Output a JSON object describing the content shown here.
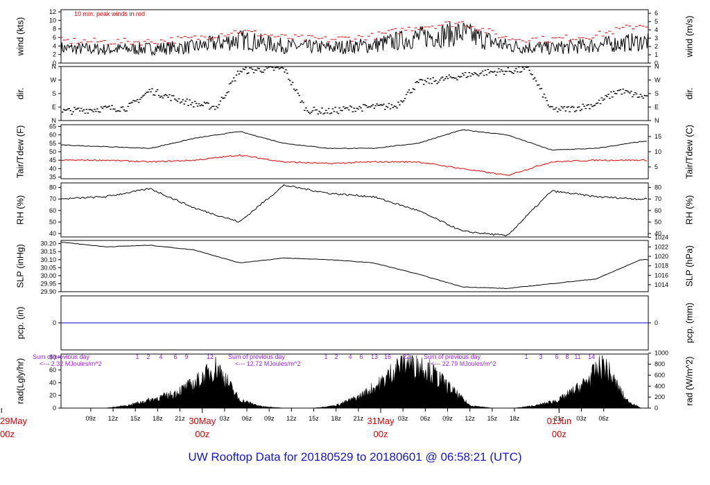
{
  "title": "UW Rooftop Data for 20180529  to  20180601 @ 06:58:21  (UTC)",
  "x_axis": {
    "hour_ticks": [
      "09z",
      "12z",
      "15z",
      "18z",
      "21z",
      "03z",
      "06z",
      "09z",
      "12z",
      "15z",
      "18z",
      "21z",
      "03z",
      "06z",
      "09z",
      "12z",
      "15z",
      "18z",
      "21z",
      "03z",
      "06z"
    ],
    "days": [
      {
        "date": "29May",
        "hour": "00z"
      },
      {
        "date": "30May",
        "hour": "00z"
      },
      {
        "date": "31May",
        "hour": "00z"
      },
      {
        "date": "01Jun",
        "hour": "00z"
      }
    ]
  },
  "panels": {
    "wind": {
      "ylabel_left": "wind (kts)",
      "ylabel_right": "wind (m/s)",
      "left_ticks": [
        "0",
        "2",
        "4",
        "6",
        "8",
        "10",
        "12"
      ],
      "right_ticks": [
        "0",
        "1",
        "2",
        "3",
        "4",
        "5",
        "6"
      ],
      "note": "10 min. peak winds in red"
    },
    "dir": {
      "ylabel_left": "dir.",
      "ylabel_right": "dir.",
      "ticks": [
        "N",
        "E",
        "S",
        "W",
        "N"
      ]
    },
    "temp": {
      "ylabel_left": "Tair/Tdew (F)",
      "ylabel_right": "Tair/Tdew (C)",
      "left_ticks": [
        "35",
        "40",
        "45",
        "50",
        "55",
        "60",
        "65"
      ],
      "right_ticks": [
        "5",
        "10",
        "15"
      ]
    },
    "rh": {
      "ylabel_left": "RH (%)",
      "ylabel_right": "RH (%)",
      "ticks": [
        "40",
        "50",
        "60",
        "70",
        "80"
      ]
    },
    "slp": {
      "ylabel_left": "SLP (inHg)",
      "ylabel_right": "SLP (hPa)",
      "left_ticks": [
        "29.90",
        "29.95",
        "30.00",
        "30.05",
        "30.10",
        "30.15",
        "30.20"
      ],
      "right_ticks": [
        "1014",
        "1016",
        "1018",
        "1020",
        "1022",
        "1024"
      ]
    },
    "pcp": {
      "ylabel_left": "pcp. (in)",
      "ylabel_right": "pcp. (mm)",
      "left_ticks": [
        "0"
      ],
      "right_ticks": [
        "0"
      ]
    },
    "rad": {
      "ylabel_left": "rad(Lgly/hr)",
      "ylabel_right": "rad (W/m^2)",
      "left_ticks": [
        "0",
        "20",
        "40",
        "60",
        "80"
      ],
      "right_ticks": [
        "0",
        "200",
        "400",
        "600",
        "800",
        "1000"
      ],
      "day_sums": [
        {
          "line1": "Sum of previous day",
          "line2": "<--- 2.32 MJoules/m^2"
        },
        {
          "line1": "Sum of previous day",
          "line2": "<--- 12.72 MJoules/m^2"
        },
        {
          "line1": "Sum of previous day",
          "line2": "<--- 22.79 MJoules/m^2"
        }
      ],
      "hour_marks": [
        [
          "1",
          "2",
          "4",
          "6",
          "9",
          "12"
        ],
        [
          "1",
          "2",
          "4",
          "6",
          "13",
          "16",
          "22"
        ],
        [
          "1",
          "3",
          "6",
          "8",
          "11",
          "14"
        ]
      ]
    }
  },
  "colors": {
    "axis": "#000000",
    "peak": "#e00000",
    "dewpoint": "#e00000",
    "precip": "#0000cc",
    "title": "#1515d0",
    "annot": "#a020f0",
    "day": "#e00000"
  },
  "chart_data": [
    {
      "type": "line",
      "panel": "wind",
      "ylim": [
        0,
        12.5
      ],
      "x_hours": [
        0,
        6,
        12,
        18,
        24,
        30,
        36,
        42,
        48,
        54,
        60,
        66,
        72,
        78
      ],
      "series": [
        {
          "values": [
            3.5,
            3.2,
            3.4,
            3.8,
            5.5,
            4.0,
            3.6,
            4.2,
            6.0,
            7.0,
            4.0,
            3.5,
            4.2,
            5.0
          ]
        },
        {
          "name": "10 min. peak winds in red",
          "values": [
            5.2,
            5.0,
            5.0,
            5.8,
            7.5,
            6.0,
            5.5,
            6.3,
            8.5,
            9.5,
            5.8,
            5.5,
            6.5,
            9.0
          ]
        }
      ]
    },
    {
      "type": "scatter",
      "panel": "dir",
      "ylim": [
        0,
        360
      ],
      "x_hours": [
        0,
        3,
        6,
        9,
        12,
        15,
        18,
        21,
        24,
        27,
        30,
        33,
        36,
        39,
        42,
        45,
        48,
        51,
        54,
        57,
        60,
        63,
        66,
        69,
        72,
        75,
        78
      ],
      "values": [
        60,
        70,
        80,
        85,
        200,
        150,
        110,
        90,
        330,
        340,
        345,
        70,
        60,
        80,
        90,
        95,
        250,
        270,
        300,
        320,
        330,
        340,
        70,
        80,
        110,
        200,
        160
      ]
    },
    {
      "type": "line",
      "panel": "temp",
      "ylim": [
        34,
        66
      ],
      "x_hours": [
        0,
        6,
        12,
        18,
        24,
        30,
        36,
        42,
        48,
        54,
        60,
        66,
        72,
        78
      ],
      "series": [
        {
          "name": "Tair",
          "values": [
            54,
            53,
            52,
            58,
            62,
            55,
            52,
            52,
            55,
            63,
            60,
            51,
            52,
            56
          ]
        },
        {
          "name": "Tdew",
          "values": [
            45,
            45,
            44,
            45,
            48,
            44,
            43,
            44,
            44,
            40,
            36,
            44,
            45,
            45
          ]
        }
      ]
    },
    {
      "type": "line",
      "panel": "rh",
      "ylim": [
        37,
        84
      ],
      "x_hours": [
        0,
        6,
        12,
        18,
        24,
        30,
        36,
        42,
        48,
        54,
        60,
        66,
        72,
        78
      ],
      "series": [
        {
          "values": [
            70,
            72,
            79,
            62,
            50,
            82,
            75,
            72,
            60,
            42,
            38,
            77,
            72,
            70
          ]
        }
      ]
    },
    {
      "type": "line",
      "panel": "slp",
      "ylim": [
        29.9,
        30.22
      ],
      "x_hours": [
        0,
        6,
        12,
        18,
        24,
        30,
        36,
        42,
        48,
        54,
        60,
        66,
        72,
        78
      ],
      "series": [
        {
          "values": [
            30.21,
            30.18,
            30.19,
            30.16,
            30.08,
            30.11,
            30.1,
            30.08,
            30.01,
            29.93,
            29.92,
            29.95,
            29.98,
            30.1
          ]
        }
      ]
    },
    {
      "type": "line",
      "panel": "pcp",
      "ylim": [
        -1,
        1
      ],
      "x_hours": [
        0,
        78
      ],
      "series": [
        {
          "values": [
            0,
            0
          ]
        }
      ]
    },
    {
      "type": "area",
      "panel": "rad",
      "ylim": [
        0,
        85
      ],
      "x_hours": [
        6,
        9,
        12,
        15,
        18,
        21,
        24,
        27,
        30,
        34,
        37,
        40,
        43,
        46,
        49,
        52,
        55,
        58,
        61,
        64,
        67,
        70,
        73,
        76,
        78
      ],
      "values": [
        0,
        5,
        15,
        25,
        45,
        75,
        15,
        3,
        0,
        0,
        5,
        20,
        45,
        85,
        75,
        40,
        5,
        0,
        0,
        5,
        15,
        40,
        80,
        15,
        0
      ]
    }
  ]
}
